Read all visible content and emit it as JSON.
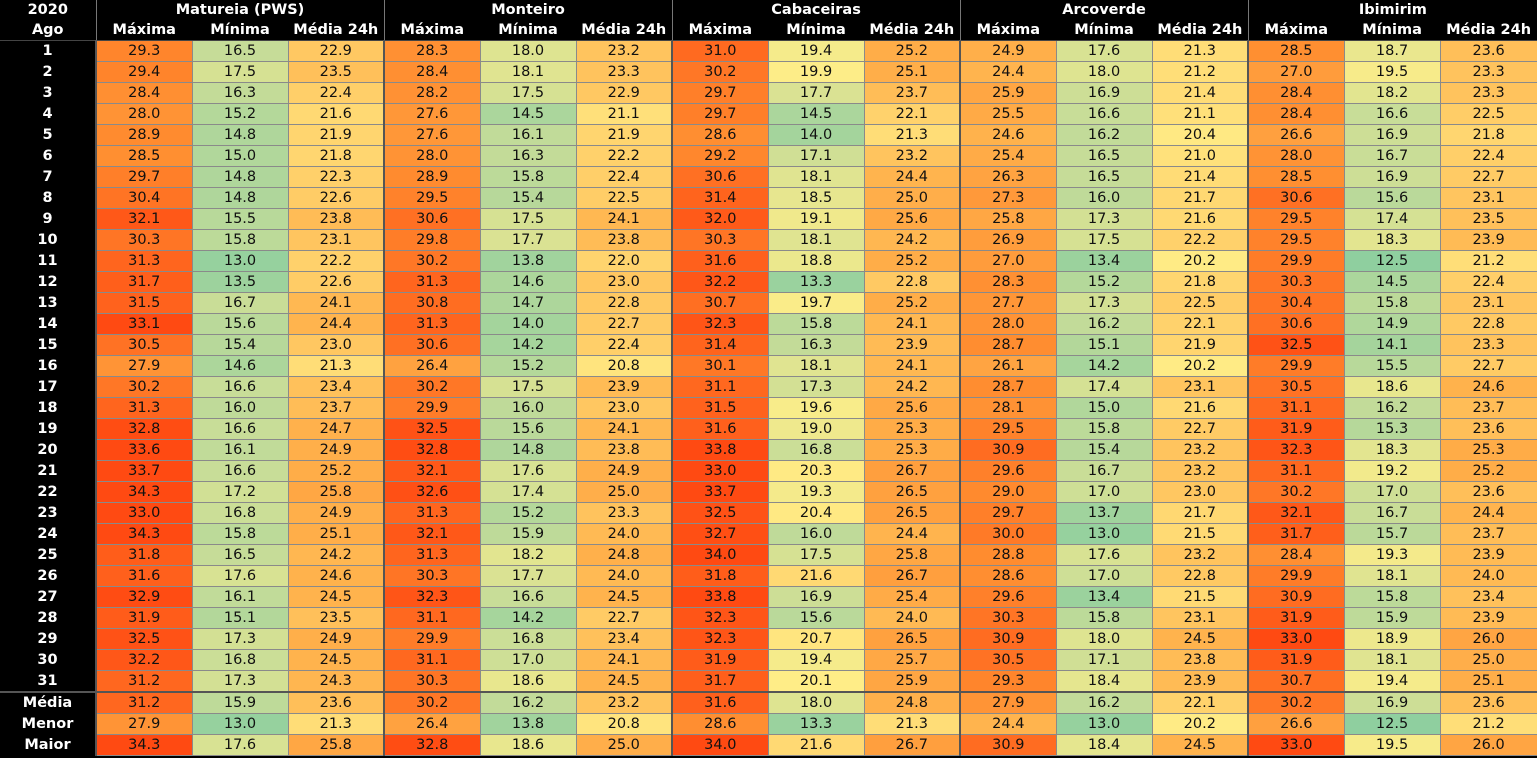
{
  "chart_data": {
    "type": "heatmap",
    "corner_top": "2020",
    "corner_bottom": "Ago",
    "stations": [
      "Matureia (PWS)",
      "Monteiro",
      "Cabaceiras",
      "Arcoverde",
      "Ibimirim"
    ],
    "metrics": [
      "Máxima",
      "Mínima",
      "Média 24h"
    ],
    "days": [
      "1",
      "2",
      "3",
      "4",
      "5",
      "6",
      "7",
      "8",
      "9",
      "10",
      "11",
      "12",
      "13",
      "14",
      "15",
      "16",
      "17",
      "18",
      "19",
      "20",
      "21",
      "22",
      "23",
      "24",
      "25",
      "26",
      "27",
      "28",
      "29",
      "30",
      "31"
    ],
    "values": [
      [
        29.3,
        16.5,
        22.9,
        28.3,
        18.0,
        23.2,
        31.0,
        19.4,
        25.2,
        24.9,
        17.6,
        21.3,
        28.5,
        18.7,
        23.6
      ],
      [
        29.4,
        17.5,
        23.5,
        28.4,
        18.1,
        23.3,
        30.2,
        19.9,
        25.1,
        24.4,
        18.0,
        21.2,
        27.0,
        19.5,
        23.3
      ],
      [
        28.4,
        16.3,
        22.4,
        28.2,
        17.5,
        22.9,
        29.7,
        17.7,
        23.7,
        25.9,
        16.9,
        21.4,
        28.4,
        18.2,
        23.3
      ],
      [
        28.0,
        15.2,
        21.6,
        27.6,
        14.5,
        21.1,
        29.7,
        14.5,
        22.1,
        25.5,
        16.6,
        21.1,
        28.4,
        16.6,
        22.5
      ],
      [
        28.9,
        14.8,
        21.9,
        27.6,
        16.1,
        21.9,
        28.6,
        14.0,
        21.3,
        24.6,
        16.2,
        20.4,
        26.6,
        16.9,
        21.8
      ],
      [
        28.5,
        15.0,
        21.8,
        28.0,
        16.3,
        22.2,
        29.2,
        17.1,
        23.2,
        25.4,
        16.5,
        21.0,
        28.0,
        16.7,
        22.4
      ],
      [
        29.7,
        14.8,
        22.3,
        28.9,
        15.8,
        22.4,
        30.6,
        18.1,
        24.4,
        26.3,
        16.5,
        21.4,
        28.5,
        16.9,
        22.7
      ],
      [
        30.4,
        14.8,
        22.6,
        29.5,
        15.4,
        22.5,
        31.4,
        18.5,
        25.0,
        27.3,
        16.0,
        21.7,
        30.6,
        15.6,
        23.1
      ],
      [
        32.1,
        15.5,
        23.8,
        30.6,
        17.5,
        24.1,
        32.0,
        19.1,
        25.6,
        25.8,
        17.3,
        21.6,
        29.5,
        17.4,
        23.5
      ],
      [
        30.3,
        15.8,
        23.1,
        29.8,
        17.7,
        23.8,
        30.3,
        18.1,
        24.2,
        26.9,
        17.5,
        22.2,
        29.5,
        18.3,
        23.9
      ],
      [
        31.3,
        13.0,
        22.2,
        30.2,
        13.8,
        22.0,
        31.6,
        18.8,
        25.2,
        27.0,
        13.4,
        20.2,
        29.9,
        12.5,
        21.2
      ],
      [
        31.7,
        13.5,
        22.6,
        31.3,
        14.6,
        23.0,
        32.2,
        13.3,
        22.8,
        28.3,
        15.2,
        21.8,
        30.3,
        14.5,
        22.4
      ],
      [
        31.5,
        16.7,
        24.1,
        30.8,
        14.7,
        22.8,
        30.7,
        19.7,
        25.2,
        27.7,
        17.3,
        22.5,
        30.4,
        15.8,
        23.1
      ],
      [
        33.1,
        15.6,
        24.4,
        31.3,
        14.0,
        22.7,
        32.3,
        15.8,
        24.1,
        28.0,
        16.2,
        22.1,
        30.6,
        14.9,
        22.8
      ],
      [
        30.5,
        15.4,
        23.0,
        30.6,
        14.2,
        22.4,
        31.4,
        16.3,
        23.9,
        28.7,
        15.1,
        21.9,
        32.5,
        14.1,
        23.3
      ],
      [
        27.9,
        14.6,
        21.3,
        26.4,
        15.2,
        20.8,
        30.1,
        18.1,
        24.1,
        26.1,
        14.2,
        20.2,
        29.9,
        15.5,
        22.7
      ],
      [
        30.2,
        16.6,
        23.4,
        30.2,
        17.5,
        23.9,
        31.1,
        17.3,
        24.2,
        28.7,
        17.4,
        23.1,
        30.5,
        18.6,
        24.6
      ],
      [
        31.3,
        16.0,
        23.7,
        29.9,
        16.0,
        23.0,
        31.5,
        19.6,
        25.6,
        28.1,
        15.0,
        21.6,
        31.1,
        16.2,
        23.7
      ],
      [
        32.8,
        16.6,
        24.7,
        32.5,
        15.6,
        24.1,
        31.6,
        19.0,
        25.3,
        29.5,
        15.8,
        22.7,
        31.9,
        15.3,
        23.6
      ],
      [
        33.6,
        16.1,
        24.9,
        32.8,
        14.8,
        23.8,
        33.8,
        16.8,
        25.3,
        30.9,
        15.4,
        23.2,
        32.3,
        18.3,
        25.3
      ],
      [
        33.7,
        16.6,
        25.2,
        32.1,
        17.6,
        24.9,
        33.0,
        20.3,
        26.7,
        29.6,
        16.7,
        23.2,
        31.1,
        19.2,
        25.2
      ],
      [
        34.3,
        17.2,
        25.8,
        32.6,
        17.4,
        25.0,
        33.7,
        19.3,
        26.5,
        29.0,
        17.0,
        23.0,
        30.2,
        17.0,
        23.6
      ],
      [
        33.0,
        16.8,
        24.9,
        31.3,
        15.2,
        23.3,
        32.5,
        20.4,
        26.5,
        29.7,
        13.7,
        21.7,
        32.1,
        16.7,
        24.4
      ],
      [
        34.3,
        15.8,
        25.1,
        32.1,
        15.9,
        24.0,
        32.7,
        16.0,
        24.4,
        30.0,
        13.0,
        21.5,
        31.7,
        15.7,
        23.7
      ],
      [
        31.8,
        16.5,
        24.2,
        31.3,
        18.2,
        24.8,
        34.0,
        17.5,
        25.8,
        28.8,
        17.6,
        23.2,
        28.4,
        19.3,
        23.9
      ],
      [
        31.6,
        17.6,
        24.6,
        30.3,
        17.7,
        24.0,
        31.8,
        21.6,
        26.7,
        28.6,
        17.0,
        22.8,
        29.9,
        18.1,
        24.0
      ],
      [
        32.9,
        16.1,
        24.5,
        32.3,
        16.6,
        24.5,
        33.8,
        16.9,
        25.4,
        29.6,
        13.4,
        21.5,
        30.9,
        15.8,
        23.4
      ],
      [
        31.9,
        15.1,
        23.5,
        31.1,
        14.2,
        22.7,
        32.3,
        15.6,
        24.0,
        30.3,
        15.8,
        23.1,
        31.9,
        15.9,
        23.9
      ],
      [
        32.5,
        17.3,
        24.9,
        29.9,
        16.8,
        23.4,
        32.3,
        20.7,
        26.5,
        30.9,
        18.0,
        24.5,
        33.0,
        18.9,
        26.0
      ],
      [
        32.2,
        16.8,
        24.5,
        31.1,
        17.0,
        24.1,
        31.9,
        19.4,
        25.7,
        30.5,
        17.1,
        23.8,
        31.9,
        18.1,
        25.0
      ],
      [
        31.2,
        17.3,
        24.3,
        30.3,
        18.6,
        24.5,
        31.7,
        20.1,
        25.9,
        29.3,
        18.4,
        23.9,
        30.7,
        19.4,
        25.1
      ]
    ],
    "summary_labels": [
      "Média",
      "Menor",
      "Maior"
    ],
    "summary_values": [
      [
        31.2,
        15.9,
        23.6,
        30.2,
        16.2,
        23.2,
        31.6,
        18.0,
        24.8,
        27.9,
        16.2,
        22.1,
        30.2,
        16.9,
        23.6
      ],
      [
        27.9,
        13.0,
        21.3,
        26.4,
        13.8,
        20.8,
        28.6,
        13.3,
        21.3,
        24.4,
        13.0,
        20.2,
        26.6,
        12.5,
        21.2
      ],
      [
        34.3,
        17.6,
        25.8,
        32.8,
        18.6,
        25.0,
        34.0,
        21.6,
        26.7,
        30.9,
        18.4,
        24.5,
        33.0,
        19.5,
        26.0
      ]
    ],
    "color_scale": {
      "stops": [
        12.5,
        16.5,
        20.0,
        24.5,
        29.0,
        33.0
      ],
      "colors": [
        "#8fcf9f",
        "#c6dc98",
        "#ffee88",
        "#ffb34d",
        "#ff8a2e",
        "#ff4a12"
      ]
    }
  }
}
